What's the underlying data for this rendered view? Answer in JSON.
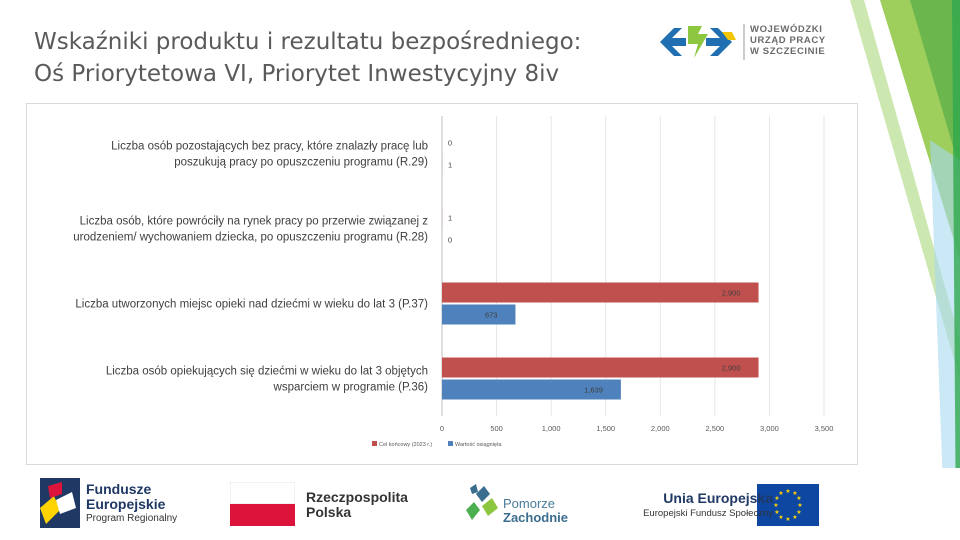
{
  "header": {
    "title_line1": "Wskaźniki produktu i rezultatu bezpośredniego:",
    "title_line2": "Oś Priorytetowa VI, Priorytet Inwestycyjny 8iv",
    "logo_lines": [
      "WOJEWÓDZKI",
      "URZĄD PRACY",
      "W SZCZECINIE"
    ]
  },
  "chart_data": {
    "type": "bar",
    "orientation": "horizontal",
    "categories": [
      [
        "Liczba osób pozostających bez pracy, które znalazły pracę lub",
        "poszukują pracy po opuszczeniu programu (R.29)"
      ],
      [
        "Liczba osób, które powróciły na rynek pracy po przerwie związanej z",
        "urodzeniem/ wychowaniem dziecka, po opuszczeniu programu (R.28)"
      ],
      [
        "Liczba utworzonych miejsc opieki nad dziećmi w wieku do lat 3 (P.37)"
      ],
      [
        "Liczba osób opiekujących się dziećmi w wieku do lat 3 objętych",
        "wsparciem w programie (P.36)"
      ]
    ],
    "series": [
      {
        "name": "Cel końcowy (2023 r.)",
        "values": [
          0,
          1,
          2900,
          2900
        ],
        "labels": [
          "0",
          "1",
          "2,900",
          "2,900"
        ],
        "color": "#c0504d"
      },
      {
        "name": "Wartość osiągnięta",
        "values": [
          1,
          0,
          673,
          1639
        ],
        "labels": [
          "1",
          "0",
          "673",
          "1,639"
        ],
        "color": "#4f81bd"
      }
    ],
    "x_ticks": [
      0,
      500,
      1000,
      1500,
      2000,
      2500,
      3000,
      3500
    ],
    "x_tick_labels": [
      "0",
      "500",
      "1,000",
      "1,500",
      "2,000",
      "2,500",
      "3,000",
      "3,500"
    ],
    "xlim": [
      0,
      3500
    ],
    "grid": true,
    "legend_position": "bottom-left"
  },
  "footer": {
    "fe": {
      "line1": "Fundusze",
      "line2": "Europejskie",
      "line3": "Program Regionalny"
    },
    "rp": {
      "line1": "Rzeczpospolita",
      "line2": "Polska"
    },
    "pz": {
      "line1": "Pomorze",
      "line2": "Zachodnie"
    },
    "ue": {
      "line1": "Unia Europejska",
      "line2": "Europejski Fundusz Społeczny"
    },
    "colors": {
      "navy": "#1f3864",
      "eu_blue": "#0e47a1",
      "eu_yellow": "#ffd400",
      "pl_red": "#dc143c"
    }
  }
}
